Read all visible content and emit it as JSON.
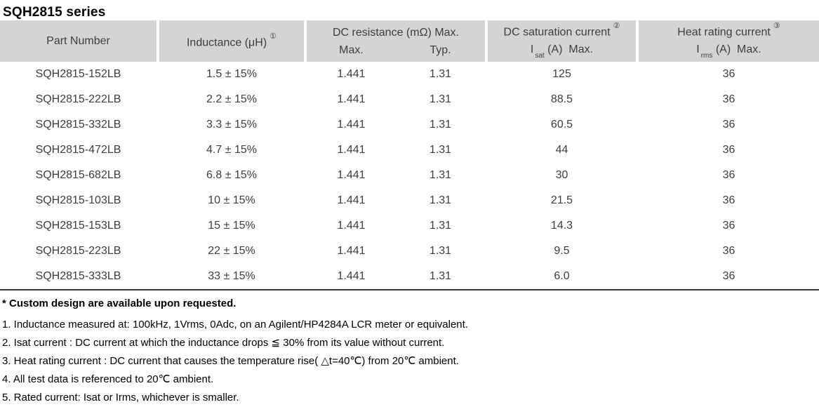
{
  "title": "SQH2815 series",
  "table": {
    "headers": {
      "part_number": "Part Number",
      "inductance_label": "Inductance (μH)",
      "inductance_note": "①",
      "dc_resistance_top": "DC resistance (mΩ) Max.",
      "dc_resistance_max": "Max.",
      "dc_resistance_typ": "Typ.",
      "saturation_top": "DC saturation current",
      "saturation_note": "②",
      "isat_symbol": "I",
      "isat_sub": "sat",
      "isat_rest": " (A)  Max.",
      "heat_top": "Heat rating current",
      "heat_note": "③",
      "irms_symbol": "I",
      "irms_sub": "rms",
      "irms_rest": " (A)  Max."
    },
    "rows": [
      {
        "part": "SQH2815-152LB",
        "inductance": "1.5 ± 15%",
        "rdc_max": "1.441",
        "rdc_typ": "1.31",
        "isat": "125",
        "irms": "36"
      },
      {
        "part": "SQH2815-222LB",
        "inductance": "2.2 ± 15%",
        "rdc_max": "1.441",
        "rdc_typ": "1.31",
        "isat": "88.5",
        "irms": "36"
      },
      {
        "part": "SQH2815-332LB",
        "inductance": "3.3 ± 15%",
        "rdc_max": "1.441",
        "rdc_typ": "1.31",
        "isat": "60.5",
        "irms": "36"
      },
      {
        "part": "SQH2815-472LB",
        "inductance": "4.7 ± 15%",
        "rdc_max": "1.441",
        "rdc_typ": "1.31",
        "isat": "44",
        "irms": "36"
      },
      {
        "part": "SQH2815-682LB",
        "inductance": "6.8 ± 15%",
        "rdc_max": "1.441",
        "rdc_typ": "1.31",
        "isat": "30",
        "irms": "36"
      },
      {
        "part": "SQH2815-103LB",
        "inductance": "10 ± 15%",
        "rdc_max": "1.441",
        "rdc_typ": "1.31",
        "isat": "21.5",
        "irms": "36"
      },
      {
        "part": "SQH2815-153LB",
        "inductance": "15 ± 15%",
        "rdc_max": "1.441",
        "rdc_typ": "1.31",
        "isat": "14.3",
        "irms": "36"
      },
      {
        "part": "SQH2815-223LB",
        "inductance": "22 ± 15%",
        "rdc_max": "1.441",
        "rdc_typ": "1.31",
        "isat": "9.5",
        "irms": "36"
      },
      {
        "part": "SQH2815-333LB",
        "inductance": "33 ± 15%",
        "rdc_max": "1.441",
        "rdc_typ": "1.31",
        "isat": "6.0",
        "irms": "36"
      }
    ]
  },
  "notes": {
    "custom": "* Custom design are available upon requested.",
    "items": [
      "1. Inductance measured at: 100kHz, 1Vrms, 0Adc, on an Agilent/HP4284A LCR meter or equivalent.",
      "2. Isat current : DC current at which the inductance drops ≦ 30% from its value without current.",
      "3. Heat rating current : DC current that causes the temperature rise( △t=40℃) from 20℃ ambient.",
      "4. All test data is referenced to 20℃ ambient.",
      "5. Rated current: Isat or Irms, whichever is smaller."
    ]
  }
}
